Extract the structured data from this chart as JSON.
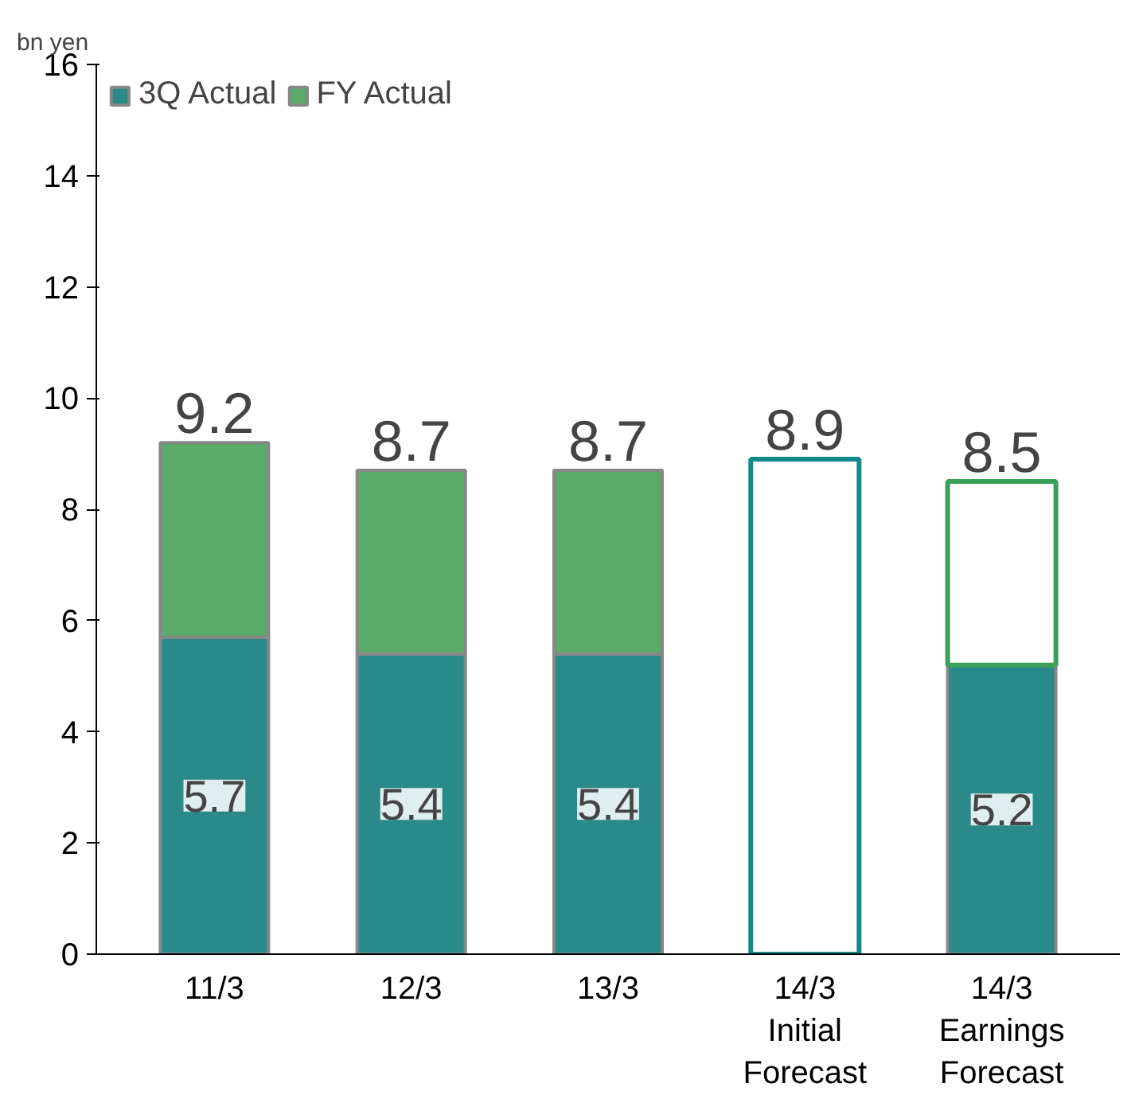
{
  "chart_data": {
    "type": "bar",
    "stacked": true,
    "ylabel": "bn yen",
    "categories": [
      "11/3",
      "12/3",
      "13/3",
      "14/3\nInitial\nForecast",
      "14/3\nEarnings\nForecast"
    ],
    "series": [
      {
        "name": "3Q Actual",
        "color": "#2a8a8a",
        "values": [
          5.7,
          5.4,
          5.4,
          null,
          5.2
        ],
        "value_labels": [
          "5.7",
          "5.4",
          "5.4",
          null,
          "5.2"
        ]
      },
      {
        "name": "FY Actual",
        "color": "#5aaa6a",
        "values": [
          3.5,
          3.3,
          3.3,
          null,
          null
        ]
      },
      {
        "colors": [
          null,
          null,
          null,
          "#138a8a",
          "#3aa05a"
        ],
        "values": [
          null,
          null,
          null,
          8.9,
          3.3
        ]
      }
    ],
    "totals": [
      "9.2",
      "8.7",
      "8.7",
      "8.9",
      "8.5"
    ],
    "ylim": [
      0,
      16
    ],
    "yticks": [
      0,
      2,
      4,
      6,
      8,
      10,
      12,
      14,
      16
    ],
    "grid": false,
    "legend": "top left"
  }
}
